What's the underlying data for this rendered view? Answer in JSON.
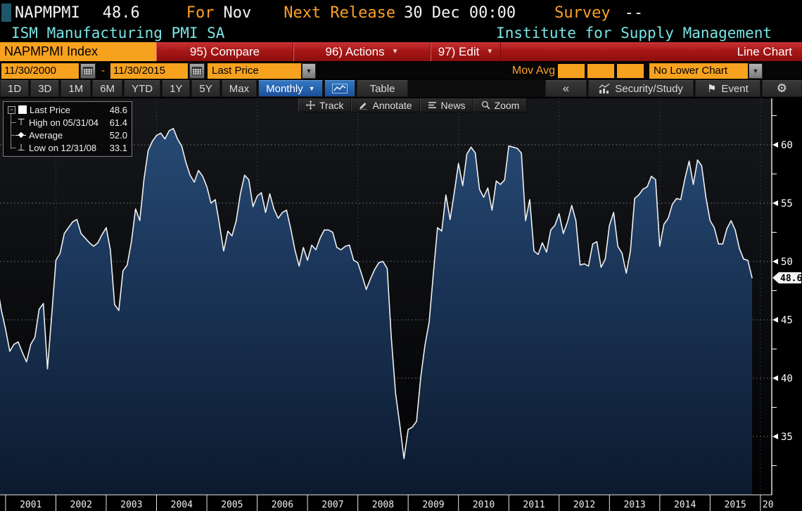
{
  "security": {
    "ticker": "NAPMPMI",
    "last_value": "48.6",
    "for_label": "For",
    "for_period": "Nov",
    "next_release_label": "Next Release",
    "next_release_value": "30 Dec 00:00",
    "survey_label": "Survey",
    "survey_value": "--",
    "description": "ISM Manufacturing PMI SA",
    "source": "Institute for Supply Management"
  },
  "menu_bar": {
    "security_field": "NAPMPMI Index",
    "buttons": [
      {
        "label": "95) Compare"
      },
      {
        "label": "96) Actions"
      },
      {
        "label": "97) Edit"
      }
    ],
    "right_label": "Line Chart"
  },
  "settings_bar": {
    "date_from": "11/30/2000",
    "date_to": "11/30/2015",
    "range_separator": "-",
    "field_select": "Last Price",
    "mov_avg_label": "Mov Avg",
    "lower_chart_select": "No Lower Chart"
  },
  "period_bar": {
    "ranges": [
      "1D",
      "3D",
      "1M",
      "6M",
      "YTD",
      "1Y",
      "5Y",
      "Max"
    ],
    "frequency": "Monthly",
    "table_label": "Table",
    "security_study_label": "Security/Study",
    "event_label": "Event"
  },
  "chart_toolbar": {
    "track": "Track",
    "annotate": "Annotate",
    "news": "News",
    "zoom": "Zoom"
  },
  "icons": {
    "dropdown_arrow": "▼",
    "collapse": "«",
    "flag": "⚑",
    "gear": "⚙",
    "minus": "−",
    "high_marker": "⊤",
    "low_marker": "⊥"
  },
  "legend": {
    "rows": [
      {
        "label": "Last Price",
        "value": "48.6"
      },
      {
        "label": "High on 05/31/04",
        "value": "61.4"
      },
      {
        "label": "Average",
        "value": "52.0"
      },
      {
        "label": "Low on 12/31/08",
        "value": "33.1"
      }
    ]
  },
  "colors": {
    "amber": "#ffa028",
    "orange_input": "#f7a21f",
    "cyan": "#7ae4e4",
    "red_bar": "#a81717",
    "blue_button": "#1c4f99",
    "area_fill_top": "#264a74",
    "area_fill_bottom": "#0c1a2e",
    "line": "#f0f0f0"
  },
  "chart_data": {
    "type": "area",
    "title": "ISM Manufacturing PMI SA (NAPMPMI Index)",
    "frequency": "monthly",
    "start_date": "2000-11",
    "end_date": "2015-11",
    "last_price": 48.6,
    "last_price_label": "48.6",
    "y_ticks": [
      35,
      40,
      45,
      50,
      55,
      60
    ],
    "ylim": [
      30,
      64
    ],
    "x_year_labels": [
      "2001",
      "2002",
      "2003",
      "2004",
      "2005",
      "2006",
      "2007",
      "2008",
      "2009",
      "2010",
      "2011",
      "2012",
      "2013",
      "2014",
      "2015"
    ],
    "x_partial_label": "20",
    "gridline_years": [
      2002,
      2004,
      2006,
      2008,
      2010,
      2012,
      2014,
      2016
    ],
    "values": [
      48.0,
      45.8,
      44.2,
      42.3,
      42.9,
      43.1,
      42.2,
      41.4,
      42.9,
      43.5,
      45.9,
      46.4,
      40.8,
      45.4,
      50.1,
      50.7,
      52.4,
      52.9,
      53.4,
      53.6,
      52.4,
      52.0,
      51.6,
      51.3,
      51.6,
      52.3,
      52.9,
      51.0,
      46.3,
      45.8,
      49.2,
      49.7,
      51.7,
      54.5,
      53.5,
      57.0,
      59.5,
      60.3,
      60.8,
      61.0,
      60.5,
      61.2,
      61.4,
      60.5,
      59.9,
      58.5,
      57.4,
      56.8,
      57.8,
      57.3,
      56.4,
      55.0,
      55.3,
      53.2,
      50.9,
      52.6,
      52.2,
      53.5,
      55.8,
      57.4,
      57.0,
      54.7,
      55.6,
      55.9,
      54.2,
      55.8,
      54.5,
      53.7,
      54.2,
      54.4,
      52.8,
      51.0,
      49.6,
      51.2,
      50.1,
      51.4,
      51.0,
      52.0,
      52.7,
      52.7,
      52.5,
      51.2,
      51.0,
      51.3,
      51.4,
      50.1,
      49.9,
      48.8,
      47.6,
      48.5,
      49.3,
      49.9,
      50.0,
      49.4,
      43.4,
      38.7,
      36.0,
      33.1,
      35.6,
      35.8,
      36.3,
      40.1,
      42.8,
      44.8,
      48.9,
      52.9,
      52.6,
      55.7,
      53.6,
      55.9,
      58.4,
      56.5,
      59.2,
      59.8,
      59.3,
      56.2,
      55.5,
      56.3,
      54.4,
      56.9,
      56.6,
      57.0,
      59.9,
      59.8,
      59.7,
      59.3,
      53.5,
      55.3,
      50.9,
      50.6,
      51.6,
      50.8,
      52.7,
      53.1,
      54.1,
      52.4,
      53.4,
      54.8,
      53.5,
      49.7,
      49.8,
      49.6,
      51.5,
      51.7,
      49.5,
      50.2,
      53.1,
      54.2,
      51.3,
      50.7,
      49.0,
      50.9,
      55.4,
      55.7,
      56.2,
      56.4,
      57.3,
      57.0,
      51.3,
      53.2,
      53.7,
      54.9,
      55.4,
      55.3,
      57.1,
      58.6,
      56.6,
      58.7,
      58.2,
      55.5,
      53.5,
      52.9,
      51.5,
      51.5,
      52.8,
      53.5,
      52.7,
      51.1,
      50.2,
      50.1,
      48.6
    ]
  }
}
